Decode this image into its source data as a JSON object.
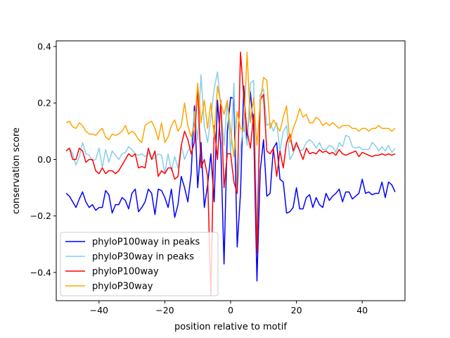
{
  "chart_data": {
    "type": "line",
    "title": "",
    "xlabel": "position relative to motif",
    "ylabel": "conservation score",
    "xlim": [
      -53,
      53
    ],
    "ylim": [
      -0.5,
      0.42
    ],
    "xticks": [
      -40,
      -20,
      0,
      20,
      40
    ],
    "yticks": [
      -0.4,
      -0.2,
      0.0,
      0.2,
      0.4
    ],
    "xtick_labels": [
      "−40",
      "−20",
      "0",
      "20",
      "40"
    ],
    "ytick_labels": [
      "−0.4",
      "−0.2",
      "0.0",
      "0.2",
      "0.4"
    ],
    "grid": false,
    "legend_position": "lower-left",
    "x": [
      -50,
      -49,
      -48,
      -47,
      -46,
      -45,
      -44,
      -43,
      -42,
      -41,
      -40,
      -39,
      -38,
      -37,
      -36,
      -35,
      -34,
      -33,
      -32,
      -31,
      -30,
      -29,
      -28,
      -27,
      -26,
      -25,
      -24,
      -23,
      -22,
      -21,
      -20,
      -19,
      -18,
      -17,
      -16,
      -15,
      -14,
      -13,
      -12,
      -11,
      -10,
      -9,
      -8,
      -7,
      -6,
      -5,
      -4,
      -3,
      -2,
      -1,
      0,
      1,
      2,
      3,
      4,
      5,
      6,
      7,
      8,
      9,
      10,
      11,
      12,
      13,
      14,
      15,
      16,
      17,
      18,
      19,
      20,
      21,
      22,
      23,
      24,
      25,
      26,
      27,
      28,
      29,
      30,
      31,
      32,
      33,
      34,
      35,
      36,
      37,
      38,
      39,
      40,
      41,
      42,
      43,
      44,
      45,
      46,
      47,
      48,
      49,
      50
    ],
    "series": [
      {
        "name": "phyloP100way in peaks",
        "color": "#0000ff",
        "values": [
          -0.12,
          -0.13,
          -0.15,
          -0.17,
          -0.14,
          -0.115,
          -0.15,
          -0.17,
          -0.16,
          -0.18,
          -0.17,
          -0.17,
          -0.11,
          -0.125,
          -0.19,
          -0.16,
          -0.16,
          -0.135,
          -0.145,
          -0.175,
          -0.12,
          -0.105,
          -0.185,
          -0.17,
          -0.15,
          -0.105,
          -0.12,
          -0.195,
          -0.105,
          -0.11,
          -0.135,
          -0.17,
          -0.105,
          -0.205,
          -0.16,
          -0.06,
          -0.1,
          -0.15,
          -0.05,
          0.19,
          -0.1,
          0.06,
          -0.17,
          -0.09,
          0.02,
          -0.15,
          0.21,
          0.05,
          -0.37,
          0.1,
          0.22,
          0.215,
          -0.31,
          -0.12,
          0.26,
          0.06,
          0.24,
          0.11,
          -0.43,
          -0.04,
          0.07,
          -0.13,
          -0.12,
          0.04,
          0.06,
          -0.07,
          -0.08,
          -0.19,
          -0.185,
          -0.17,
          -0.1,
          -0.175,
          -0.175,
          -0.135,
          -0.125,
          -0.17,
          -0.135,
          -0.16,
          -0.17,
          -0.12,
          -0.145,
          -0.13,
          -0.12,
          -0.105,
          -0.15,
          -0.115,
          -0.115,
          -0.14,
          -0.13,
          -0.12,
          -0.07,
          -0.12,
          -0.115,
          -0.125,
          -0.12,
          -0.12,
          -0.08,
          -0.135,
          -0.08,
          -0.09,
          -0.115
        ]
      },
      {
        "name": "phyloP30way in peaks",
        "color": "#87ceeb",
        "values": [
          0.03,
          0.04,
          0.02,
          -0.02,
          0.01,
          0.06,
          0.02,
          0.015,
          -0.005,
          0.0,
          0.04,
          -0.03,
          0.035,
          -0.01,
          0.03,
          0.015,
          0.0,
          0.02,
          0.025,
          0.045,
          0.035,
          0.02,
          0.015,
          0.02,
          0.01,
          0.025,
          0.0,
          0.005,
          0.02,
          0.015,
          -0.05,
          0.02,
          -0.04,
          0.01,
          -0.03,
          0.05,
          0.0,
          0.03,
          0.05,
          0.17,
          0.07,
          0.3,
          0.12,
          0.06,
          0.15,
          0.25,
          0.31,
          0.19,
          0.05,
          0.21,
          0.02,
          0.27,
          -0.12,
          0.04,
          0.13,
          0.05,
          0.27,
          0.28,
          -0.26,
          0.23,
          0.25,
          0.12,
          0.13,
          0.1,
          0.13,
          0.03,
          0.1,
          0.12,
          0.0,
          0.02,
          0.05,
          0.03,
          0.035,
          0.06,
          0.07,
          0.06,
          0.04,
          0.06,
          0.035,
          0.035,
          0.05,
          0.045,
          0.025,
          0.06,
          0.045,
          0.085,
          0.08,
          0.045,
          0.04,
          0.045,
          0.035,
          0.035,
          0.035,
          0.06,
          0.05,
          0.03,
          0.045,
          0.03,
          0.05,
          0.025,
          0.04
        ]
      },
      {
        "name": "phyloP100way",
        "color": "#ff0000",
        "values": [
          0.03,
          0.04,
          0.0,
          0.0,
          0.04,
          0.03,
          -0.01,
          0.0,
          0.0,
          -0.04,
          -0.05,
          -0.03,
          -0.05,
          -0.04,
          -0.04,
          -0.05,
          -0.04,
          -0.02,
          0.0,
          0.02,
          0.01,
          0.02,
          -0.03,
          -0.025,
          -0.03,
          0.04,
          0.0,
          0.03,
          -0.06,
          -0.04,
          -0.05,
          -0.03,
          -0.03,
          -0.07,
          -0.06,
          0.05,
          0.1,
          0.07,
          0.02,
          0.06,
          0.26,
          -0.03,
          0.0,
          -0.06,
          -0.48,
          0.12,
          0.0,
          0.21,
          -0.1,
          0.02,
          0.02,
          -0.08,
          -0.12,
          0.38,
          0.22,
          0.1,
          0.04,
          0.16,
          -0.33,
          0.21,
          0.23,
          0.03,
          0.02,
          0.04,
          -0.06,
          0.03,
          -0.03,
          0.06,
          0.09,
          0.03,
          0.06,
          0.03,
          0.0,
          0.04,
          0.02,
          0.025,
          0.02,
          0.035,
          0.025,
          0.03,
          0.02,
          0.025,
          0.015,
          0.035,
          0.02,
          0.015,
          0.02,
          0.025,
          0.03,
          0.01,
          0.025,
          0.02,
          0.015,
          0.01,
          0.015,
          0.015,
          0.02,
          0.015,
          0.02,
          0.015,
          0.02
        ]
      },
      {
        "name": "phyloP30way",
        "color": "#ffa500",
        "values": [
          0.13,
          0.135,
          0.115,
          0.11,
          0.13,
          0.12,
          0.1,
          0.09,
          0.09,
          0.085,
          0.1,
          0.11,
          0.08,
          0.07,
          0.09,
          0.085,
          0.09,
          0.1,
          0.12,
          0.09,
          0.1,
          0.09,
          0.07,
          0.06,
          0.12,
          0.13,
          0.135,
          0.11,
          0.07,
          0.13,
          0.06,
          0.08,
          0.12,
          0.14,
          0.1,
          0.12,
          0.2,
          0.12,
          0.08,
          0.12,
          0.27,
          0.13,
          0.21,
          0.11,
          0.2,
          0.08,
          0.26,
          0.2,
          0.16,
          0.21,
          0.1,
          0.01,
          0.17,
          0.11,
          0.1,
          0.38,
          0.13,
          0.22,
          0.05,
          0.2,
          0.29,
          0.28,
          0.11,
          0.14,
          0.12,
          0.1,
          0.15,
          0.19,
          0.06,
          0.11,
          0.14,
          0.18,
          0.15,
          0.16,
          0.13,
          0.13,
          0.15,
          0.14,
          0.12,
          0.13,
          0.12,
          0.13,
          0.12,
          0.11,
          0.12,
          0.12,
          0.12,
          0.11,
          0.11,
          0.1,
          0.11,
          0.11,
          0.1,
          0.11,
          0.11,
          0.12,
          0.11,
          0.11,
          0.11,
          0.1,
          0.11
        ]
      }
    ]
  }
}
